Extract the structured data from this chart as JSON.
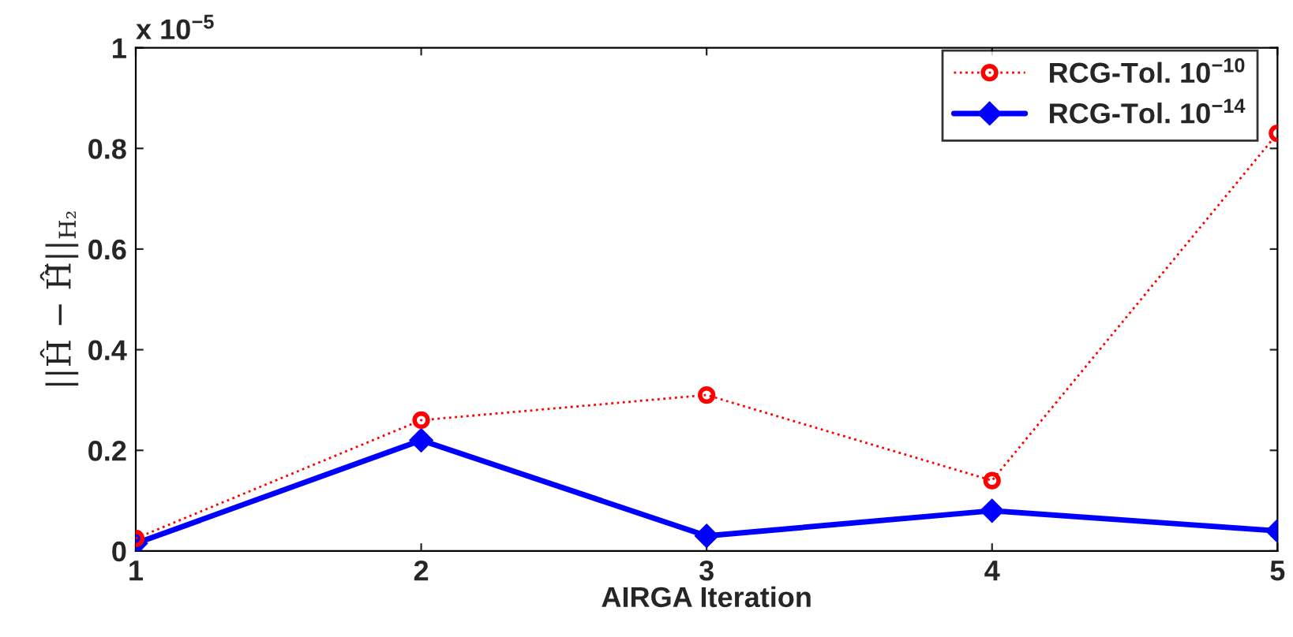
{
  "chart_data": {
    "type": "line",
    "xlabel": "AIRGA Iteration",
    "ylabel": "||Ĥ − Ĥ̃||$_{H₂}$",
    "annotations": [
      "x 10$^{−5}$"
    ],
    "x": [
      1,
      2,
      3,
      4,
      5
    ],
    "series": [
      {
        "name": "RCG-Tol. 10$^{−10}$",
        "color": "#ff0000",
        "marker": "circle",
        "line_style": "dotted",
        "values": [
          0.025,
          0.26,
          0.31,
          0.14,
          0.83
        ]
      },
      {
        "name": "RCG-Tol. 10$^{−14}$",
        "color": "#0000ff",
        "marker": "diamond",
        "line_style": "solid",
        "values": [
          0.015,
          0.22,
          0.03,
          0.08,
          0.04
        ]
      }
    ],
    "xlim": [
      1,
      5
    ],
    "xticks": [
      1,
      2,
      3,
      4,
      5
    ],
    "ylim": [
      0,
      1
    ],
    "yticks": [
      0,
      {
        "value": 0.2,
        "label": "0.2"
      },
      {
        "value": 0.4,
        "label": "0.4"
      },
      {
        "value": 0.6,
        "label": "0.6"
      },
      {
        "value": 0.8,
        "label": "0.8"
      },
      1
    ],
    "grid": false,
    "legend": "top right"
  }
}
